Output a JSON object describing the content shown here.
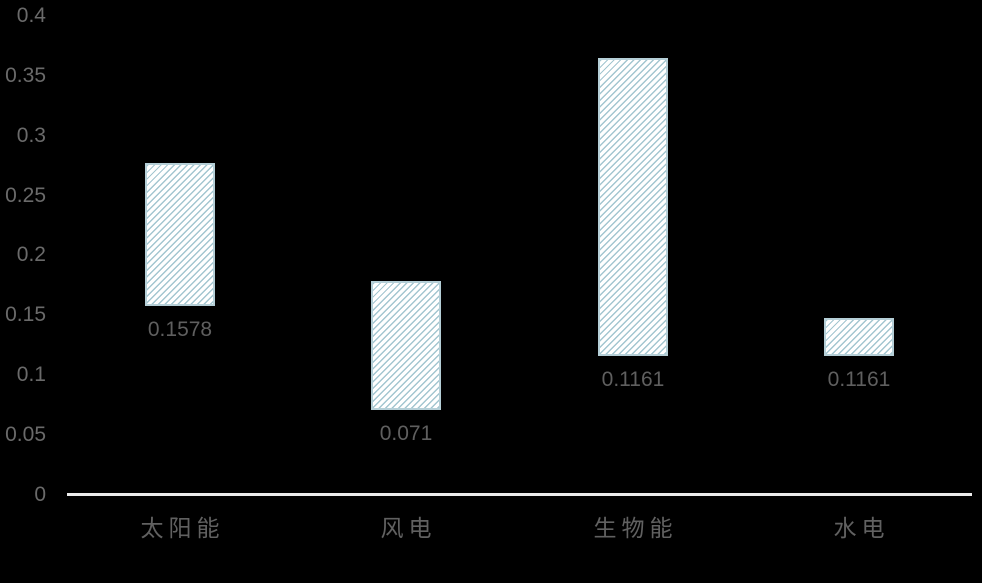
{
  "chart_data": {
    "type": "bar",
    "subtype": "floating_range_bars",
    "title": "",
    "xlabel": "",
    "ylabel": "",
    "categories": [
      "太阳能",
      "风电",
      "生物能",
      "水电"
    ],
    "series": [
      {
        "name": "range",
        "low": [
          0.1578,
          0.071,
          0.1161,
          0.1161
        ],
        "high_estimated": [
          0.277,
          0.179,
          0.365,
          0.148
        ]
      }
    ],
    "data_labels": [
      "0.1578",
      "0.071",
      "0.1161",
      "0.1161"
    ],
    "ylim": [
      0,
      0.4
    ],
    "ytick_step": 0.05,
    "yticks": [
      {
        "value": 0.4,
        "label": "0.4"
      },
      {
        "value": 0.35,
        "label": "0.35"
      },
      {
        "value": 0.3,
        "label": "0.3"
      },
      {
        "value": 0.25,
        "label": "0.25"
      },
      {
        "value": 0.2,
        "label": "0.2"
      },
      {
        "value": 0.15,
        "label": "0.15"
      },
      {
        "value": 0.1,
        "label": "0.1"
      },
      {
        "value": 0.05,
        "label": "0.05"
      },
      {
        "value": 0,
        "label": "0"
      }
    ],
    "grid": false,
    "legend_position": "none",
    "bar_pattern": "light-upward-diagonal-hatch",
    "colors": {
      "background": "#000000",
      "bar_fill": "#ffffff",
      "bar_hatch": "#a3c6d0",
      "bar_border": "#b5cfd7",
      "axis_line": "#ececec",
      "ytick_text": "#6a6a6a",
      "data_label_text": "#5f5f5f",
      "category_text": "#616161"
    }
  }
}
